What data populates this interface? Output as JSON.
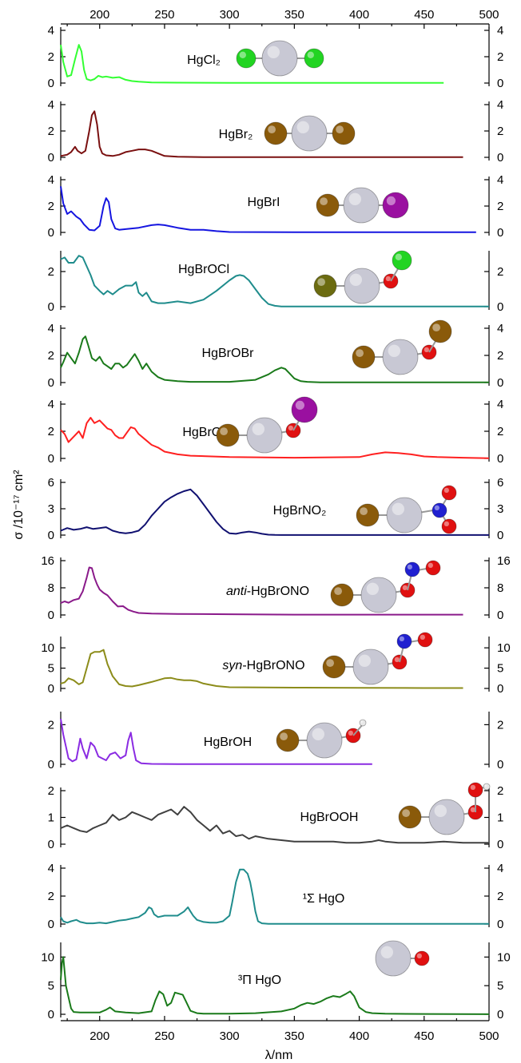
{
  "figure": {
    "xlabel": "λ/nm",
    "ylabel": "σ /10⁻¹⁷ cm²",
    "xlim": [
      170,
      500
    ],
    "xticks": [
      200,
      250,
      300,
      350,
      400,
      450,
      500
    ]
  },
  "chart_data": [
    {
      "type": "line",
      "label": "HgCl₂",
      "ylim": [
        0,
        4
      ],
      "yticks": [
        0,
        2,
        4
      ],
      "color": "#33ff33",
      "x": [
        170,
        172,
        175,
        178,
        181,
        184,
        186,
        188,
        190,
        193,
        196,
        199,
        202,
        205,
        210,
        215,
        220,
        225,
        230,
        240,
        260,
        300,
        350,
        400,
        450,
        465
      ],
      "y": [
        2.9,
        1.6,
        0.5,
        0.6,
        1.8,
        2.9,
        2.4,
        1.0,
        0.3,
        0.2,
        0.3,
        0.55,
        0.45,
        0.5,
        0.4,
        0.45,
        0.25,
        0.15,
        0.1,
        0.05,
        0.03,
        0.02,
        0.02,
        0.02,
        0.02,
        0.02
      ],
      "molecule": [
        "Cl",
        "Hg",
        "Cl"
      ]
    },
    {
      "type": "line",
      "label": "HgBr₂",
      "ylim": [
        0,
        4
      ],
      "yticks": [
        0,
        2,
        4
      ],
      "color": "#7a1010",
      "x": [
        170,
        175,
        178,
        181,
        183,
        186,
        189,
        192,
        194,
        196,
        198,
        200,
        202,
        205,
        210,
        215,
        220,
        225,
        230,
        235,
        240,
        245,
        250,
        260,
        280,
        300,
        350,
        400,
        450,
        480
      ],
      "y": [
        0.1,
        0.2,
        0.4,
        0.8,
        0.5,
        0.3,
        0.5,
        2.0,
        3.2,
        3.5,
        2.5,
        0.8,
        0.3,
        0.15,
        0.1,
        0.2,
        0.4,
        0.5,
        0.6,
        0.6,
        0.5,
        0.3,
        0.1,
        0.05,
        0.02,
        0.01,
        0.01,
        0.01,
        0.01,
        0.01
      ],
      "molecule": [
        "Br",
        "Hg",
        "Br"
      ]
    },
    {
      "type": "line",
      "label": "HgBrI",
      "ylim": [
        0,
        4
      ],
      "yticks": [
        0,
        2,
        4
      ],
      "color": "#1515e0",
      "x": [
        170,
        172,
        175,
        178,
        182,
        185,
        188,
        192,
        196,
        200,
        203,
        205,
        207,
        209,
        212,
        215,
        220,
        230,
        240,
        245,
        250,
        260,
        270,
        280,
        290,
        300,
        350,
        400,
        450,
        490
      ],
      "y": [
        3.5,
        2.2,
        1.4,
        1.6,
        1.2,
        1.0,
        0.6,
        0.2,
        0.15,
        0.5,
        2.0,
        2.6,
        2.3,
        1.0,
        0.3,
        0.2,
        0.25,
        0.35,
        0.55,
        0.6,
        0.55,
        0.35,
        0.2,
        0.2,
        0.1,
        0.03,
        0.01,
        0.01,
        0.01,
        0.01
      ],
      "molecule": [
        "Br",
        "Hg",
        "I"
      ]
    },
    {
      "type": "line",
      "label": "HgBrOCl",
      "ylim": [
        0,
        3
      ],
      "yticks": [
        0,
        2
      ],
      "color": "#1f8c8c",
      "x": [
        170,
        173,
        176,
        180,
        184,
        187,
        190,
        193,
        196,
        200,
        203,
        206,
        210,
        215,
        220,
        225,
        228,
        230,
        233,
        236,
        240,
        245,
        250,
        255,
        260,
        265,
        270,
        280,
        290,
        300,
        305,
        308,
        311,
        315,
        320,
        325,
        330,
        335,
        340,
        345,
        350,
        400,
        450,
        500
      ],
      "y": [
        2.7,
        2.8,
        2.5,
        2.5,
        2.9,
        2.8,
        2.3,
        1.8,
        1.2,
        0.9,
        0.7,
        0.9,
        0.7,
        1.0,
        1.2,
        1.2,
        1.4,
        0.8,
        0.6,
        0.8,
        0.3,
        0.2,
        0.2,
        0.25,
        0.3,
        0.25,
        0.2,
        0.4,
        0.9,
        1.5,
        1.75,
        1.8,
        1.75,
        1.5,
        1.0,
        0.5,
        0.15,
        0.05,
        0.01,
        0.01,
        0.01,
        0.01,
        0.01,
        0.01
      ],
      "molecule": [
        "Br",
        "Hg",
        "O",
        "Cl"
      ]
    },
    {
      "type": "line",
      "label": "HgBrOBr",
      "ylim": [
        0,
        4
      ],
      "yticks": [
        0,
        2,
        4
      ],
      "color": "#1a7a1a",
      "x": [
        170,
        172,
        175,
        178,
        181,
        184,
        187,
        189,
        191,
        194,
        197,
        200,
        203,
        206,
        209,
        212,
        215,
        218,
        221,
        224,
        227,
        230,
        233,
        236,
        240,
        245,
        250,
        260,
        270,
        300,
        320,
        330,
        335,
        340,
        343,
        346,
        350,
        355,
        360,
        370,
        400,
        450,
        500
      ],
      "y": [
        1.1,
        1.5,
        2.2,
        1.8,
        1.4,
        2.2,
        3.2,
        3.4,
        2.8,
        1.8,
        1.6,
        1.9,
        1.4,
        1.2,
        1.0,
        1.4,
        1.4,
        1.1,
        1.3,
        1.7,
        2.1,
        1.6,
        1.0,
        1.4,
        0.8,
        0.4,
        0.2,
        0.1,
        0.05,
        0.05,
        0.2,
        0.6,
        0.9,
        1.1,
        1.0,
        0.7,
        0.3,
        0.1,
        0.05,
        0.02,
        0.01,
        0.01,
        0.01
      ],
      "molecule": [
        "Br",
        "Hg",
        "O",
        "Br"
      ]
    },
    {
      "type": "line",
      "label": "HgBrOI",
      "ylim": [
        0,
        4
      ],
      "yticks": [
        0,
        2,
        4
      ],
      "color": "#ff2020",
      "x": [
        170,
        173,
        176,
        180,
        184,
        187,
        190,
        193,
        196,
        200,
        203,
        206,
        209,
        212,
        215,
        218,
        221,
        224,
        227,
        230,
        235,
        240,
        245,
        250,
        260,
        270,
        300,
        350,
        400,
        410,
        420,
        430,
        440,
        450,
        460,
        480,
        500
      ],
      "y": [
        2.1,
        1.8,
        1.2,
        1.6,
        2.0,
        1.5,
        2.6,
        3.0,
        2.6,
        2.8,
        2.5,
        2.2,
        2.1,
        1.7,
        1.5,
        1.5,
        1.9,
        2.3,
        2.2,
        1.8,
        1.4,
        1.0,
        0.8,
        0.5,
        0.3,
        0.2,
        0.1,
        0.05,
        0.1,
        0.3,
        0.45,
        0.4,
        0.3,
        0.15,
        0.1,
        0.05,
        0.02
      ],
      "molecule": [
        "Br",
        "Hg",
        "O",
        "I"
      ]
    },
    {
      "type": "line",
      "label": "HgBrNO₂",
      "ylim": [
        0,
        6
      ],
      "yticks": [
        0,
        3,
        6
      ],
      "color": "#101070",
      "x": [
        170,
        175,
        180,
        185,
        190,
        195,
        200,
        205,
        210,
        215,
        220,
        225,
        230,
        235,
        240,
        245,
        250,
        255,
        260,
        265,
        270,
        275,
        280,
        285,
        290,
        295,
        300,
        305,
        310,
        315,
        320,
        325,
        330,
        335,
        340,
        350,
        400,
        450,
        500
      ],
      "y": [
        0.5,
        0.8,
        0.6,
        0.7,
        0.9,
        0.7,
        0.8,
        0.9,
        0.5,
        0.3,
        0.2,
        0.3,
        0.5,
        1.2,
        2.2,
        3.0,
        3.8,
        4.3,
        4.7,
        5.0,
        5.2,
        4.5,
        3.5,
        2.5,
        1.5,
        0.7,
        0.2,
        0.15,
        0.3,
        0.4,
        0.3,
        0.15,
        0.05,
        0.02,
        0.01,
        0.01,
        0.01,
        0.01,
        0.01
      ],
      "molecule": [
        "Br",
        "Hg",
        "N",
        "O",
        "O"
      ]
    },
    {
      "type": "line",
      "label": "anti-HgBrONO",
      "label_prefix": "anti",
      "label_suffix": "-HgBrONO",
      "ylim": [
        0,
        16
      ],
      "yticks": [
        0,
        8,
        16
      ],
      "color": "#8a1a8a",
      "x": [
        170,
        173,
        176,
        180,
        184,
        187,
        190,
        192,
        194,
        196,
        198,
        200,
        203,
        206,
        210,
        214,
        218,
        222,
        226,
        230,
        240,
        260,
        300,
        350,
        400,
        450,
        480
      ],
      "y": [
        3.5,
        4.0,
        3.6,
        4.4,
        4.8,
        7,
        11,
        14,
        13.8,
        11,
        9,
        7.5,
        6.5,
        5.8,
        4,
        2.5,
        2.6,
        1.5,
        1.0,
        0.6,
        0.4,
        0.3,
        0.2,
        0.1,
        0.1,
        0.1,
        0.1
      ],
      "molecule": [
        "Br",
        "Hg",
        "O",
        "N",
        "O"
      ]
    },
    {
      "type": "line",
      "label": "syn-HgBrONO",
      "label_prefix": "syn",
      "label_suffix": "-HgBrONO",
      "ylim": [
        0,
        12
      ],
      "yticks": [
        0,
        5,
        10
      ],
      "color": "#8c8c1a",
      "x": [
        170,
        173,
        176,
        180,
        184,
        187,
        190,
        193,
        196,
        200,
        203,
        206,
        210,
        215,
        220,
        225,
        230,
        240,
        250,
        255,
        260,
        265,
        270,
        275,
        280,
        290,
        300,
        350,
        400,
        450,
        480
      ],
      "y": [
        1.2,
        1.5,
        2.5,
        2.0,
        1.0,
        1.5,
        5,
        8.5,
        9,
        9,
        9.5,
        6,
        3,
        1.0,
        0.6,
        0.5,
        0.8,
        1.6,
        2.5,
        2.6,
        2.2,
        2.0,
        2.0,
        1.8,
        1.2,
        0.6,
        0.3,
        0.2,
        0.15,
        0.1,
        0.1
      ],
      "molecule": [
        "Br",
        "Hg",
        "O",
        "N",
        "O"
      ]
    },
    {
      "type": "line",
      "label": "HgBrOH",
      "ylim": [
        0,
        2.5
      ],
      "yticks": [
        0,
        2
      ],
      "color": "#8a2be2",
      "x": [
        170,
        172,
        174,
        176,
        179,
        182,
        185,
        187,
        190,
        193,
        196,
        199,
        202,
        205,
        208,
        212,
        216,
        220,
        222,
        224,
        226,
        228,
        232,
        240,
        260,
        300,
        350,
        410
      ],
      "y": [
        2.3,
        1.5,
        0.9,
        0.3,
        0.15,
        0.25,
        1.3,
        0.8,
        0.3,
        1.1,
        0.9,
        0.4,
        0.3,
        0.2,
        0.5,
        0.6,
        0.3,
        0.45,
        1.2,
        1.6,
        0.8,
        0.2,
        0.05,
        0.02,
        0.01,
        0.01,
        0.01,
        0.01
      ],
      "molecule": [
        "Br",
        "Hg",
        "O",
        "H"
      ]
    },
    {
      "type": "line",
      "label": "HgBrOOH",
      "ylim": [
        0,
        2
      ],
      "yticks": [
        0,
        1,
        2
      ],
      "color": "#404040",
      "x": [
        170,
        175,
        180,
        185,
        190,
        195,
        200,
        205,
        210,
        215,
        220,
        225,
        230,
        235,
        240,
        245,
        250,
        255,
        260,
        265,
        270,
        275,
        280,
        285,
        290,
        295,
        300,
        305,
        310,
        315,
        320,
        330,
        340,
        350,
        360,
        370,
        380,
        390,
        400,
        410,
        415,
        420,
        430,
        450,
        465,
        480,
        500
      ],
      "y": [
        0.6,
        0.7,
        0.6,
        0.5,
        0.45,
        0.6,
        0.7,
        0.8,
        1.1,
        0.9,
        1.0,
        1.2,
        1.1,
        1.0,
        0.9,
        1.1,
        1.2,
        1.3,
        1.1,
        1.4,
        1.2,
        0.9,
        0.7,
        0.5,
        0.7,
        0.4,
        0.5,
        0.3,
        0.35,
        0.2,
        0.3,
        0.2,
        0.15,
        0.1,
        0.1,
        0.1,
        0.1,
        0.05,
        0.05,
        0.1,
        0.15,
        0.1,
        0.05,
        0.05,
        0.1,
        0.05,
        0.05
      ],
      "molecule": [
        "Br",
        "Hg",
        "O",
        "O",
        "H"
      ]
    },
    {
      "type": "line",
      "label": "¹Σ HgO",
      "ylim": [
        0,
        4
      ],
      "yticks": [
        0,
        2,
        4
      ],
      "color": "#1f8c8c",
      "x": [
        170,
        172,
        175,
        178,
        182,
        185,
        190,
        195,
        200,
        205,
        210,
        215,
        220,
        225,
        230,
        235,
        238,
        240,
        242,
        245,
        250,
        255,
        260,
        265,
        268,
        270,
        272,
        275,
        280,
        285,
        290,
        295,
        300,
        302,
        305,
        308,
        311,
        314,
        316,
        318,
        320,
        322,
        325,
        330,
        350,
        400,
        450,
        500
      ],
      "y": [
        0.5,
        0.2,
        0.1,
        0.2,
        0.3,
        0.15,
        0.05,
        0.05,
        0.1,
        0.05,
        0.15,
        0.25,
        0.3,
        0.4,
        0.5,
        0.8,
        1.2,
        1.1,
        0.7,
        0.5,
        0.6,
        0.6,
        0.6,
        0.9,
        1.2,
        0.9,
        0.6,
        0.3,
        0.15,
        0.1,
        0.1,
        0.2,
        0.6,
        1.5,
        3.0,
        3.9,
        3.9,
        3.6,
        3.0,
        2.0,
        0.9,
        0.2,
        0.05,
        0.02,
        0.01,
        0.01,
        0.01,
        0.01
      ],
      "molecule": [
        "Hg",
        "O"
      ]
    },
    {
      "type": "line",
      "label": "³Π HgO",
      "ylim": [
        0,
        12
      ],
      "yticks": [
        0,
        5,
        10
      ],
      "color": "#1a7a1a",
      "x": [
        170,
        171,
        172,
        174,
        176,
        178,
        180,
        185,
        190,
        200,
        205,
        208,
        212,
        220,
        230,
        240,
        243,
        246,
        249,
        252,
        255,
        258,
        261,
        264,
        267,
        270,
        275,
        280,
        290,
        300,
        320,
        340,
        350,
        355,
        360,
        365,
        370,
        375,
        380,
        385,
        390,
        393,
        396,
        400,
        405,
        410,
        420,
        450,
        500
      ],
      "y": [
        6,
        9,
        10,
        5,
        3,
        1,
        0.4,
        0.3,
        0.3,
        0.3,
        0.8,
        1.2,
        0.5,
        0.3,
        0.2,
        0.5,
        2.5,
        4,
        3.5,
        1.5,
        2,
        3.8,
        3.6,
        3.4,
        2,
        0.6,
        0.2,
        0.1,
        0.1,
        0.1,
        0.2,
        0.5,
        1.0,
        1.6,
        2.0,
        1.8,
        2.2,
        2.8,
        3.2,
        3.0,
        3.6,
        4,
        3.2,
        1.2,
        0.4,
        0.2,
        0.1,
        0.05,
        0.02
      ],
      "molecule": [
        "Hg",
        "O"
      ]
    }
  ],
  "atom_colors": {
    "Hg": "#c8c8d4",
    "Cl": "#22d422",
    "Br": "#8a5a0a",
    "I": "#9a10a0",
    "O": "#e01010",
    "N": "#2020d0",
    "H": "#e8e8e8"
  },
  "bromine_olive_color": "#6b6b10"
}
